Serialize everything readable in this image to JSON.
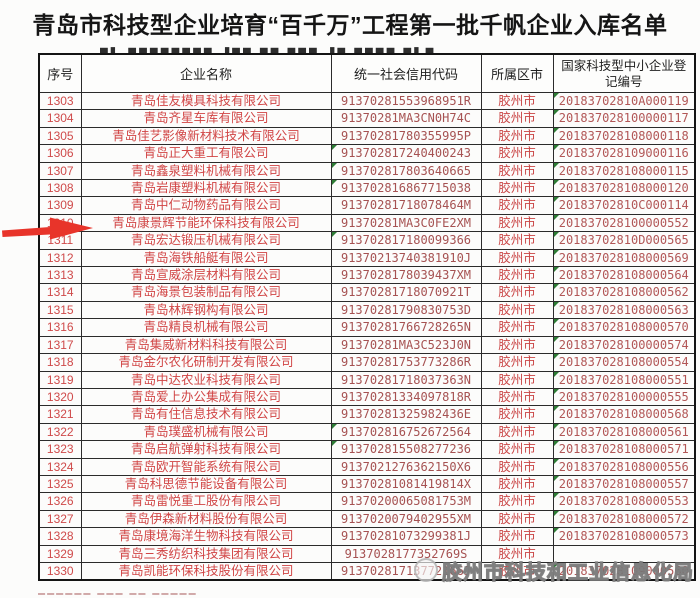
{
  "title": "青岛市科技型企业培育“百千万”工程第一批千帆企业入库名单",
  "artifacts": {
    "clipped_line_top": "▄▖ ▄▄▄▄▄▄▄▄ ▗▄▄ ▄▄ ▄▄▄ ▗▄ ▄▄▄▄ ▄▖▄",
    "clipped_row_bottom": "▀▀▀▀▀▀        ▀▀▀        ▀▀        ▀▀▀▀▀"
  },
  "table": {
    "headers": [
      "序号",
      "企业名称",
      "统一社会信用代码",
      "所属区市",
      "国家科技型中小企业登记编号"
    ],
    "rows": [
      [
        "1303",
        "青岛佳友模具科技有限公司",
        "91370281553968951R",
        "胶州市",
        "20183702810A000119"
      ],
      [
        "1304",
        "青岛齐星车库有限公司",
        "91370281MA3CN0H74C",
        "胶州市",
        "201837028100000117"
      ],
      [
        "1305",
        "青岛佳艺影像新材料技术有限公司",
        "91370281780355995P",
        "胶州市",
        "201837028108000118"
      ],
      [
        "1306",
        "青岛正大重工有限公司",
        "913702817240400243",
        "胶州市",
        "201837028109000116"
      ],
      [
        "1307",
        "青岛鑫泉塑料机械有限公司",
        "913702817803640665",
        "胶州市",
        "201837028108000115"
      ],
      [
        "1308",
        "青岛岩康塑料机械有限公司",
        "913702816867715038",
        "胶州市",
        "201837028108000120"
      ],
      [
        "1309",
        "青岛中仁动物药品有限公司",
        "91370281718078464M",
        "胶州市",
        "20183702810C000114"
      ],
      [
        "1310",
        "青岛康景辉节能环保科技有限公司",
        "91370281MA3C0FE2XM",
        "胶州市",
        "201837028100000552"
      ],
      [
        "1311",
        "青岛宏达锻压机械有限公司",
        "913702817180099366",
        "胶州市",
        "20183702810D000565"
      ],
      [
        "1312",
        "青岛海铁船艇有限公司",
        "91370213740381910J",
        "胶州市",
        "201837028108000569"
      ],
      [
        "1313",
        "青岛宣威涂层材料有限公司",
        "9137028178039437XM",
        "胶州市",
        "201837028108000564"
      ],
      [
        "1314",
        "青岛海景包装制品有限公司",
        "91370281718070921T",
        "胶州市",
        "201837028108000562"
      ],
      [
        "1315",
        "青岛林辉钢构有限公司",
        "91370281790830753D",
        "胶州市",
        "201837028108000563"
      ],
      [
        "1316",
        "青岛精良机械有限公司",
        "91370281766728265N",
        "胶州市",
        "201837028108000570"
      ],
      [
        "1317",
        "青岛集威新材料科技有限公司",
        "91370281MA3C523J0N",
        "胶州市",
        "201837028100000574"
      ],
      [
        "1318",
        "青岛金尔农化研制开发有限公司",
        "91370281753773286R",
        "胶州市",
        "201837028108000554"
      ],
      [
        "1319",
        "青岛中达农业科技有限公司",
        "91370281718037363N",
        "胶州市",
        "201837028108000551"
      ],
      [
        "1320",
        "青岛爱上办公集成有限公司",
        "91370281334097818R",
        "胶州市",
        "201837028100000555"
      ],
      [
        "1321",
        "青岛有住信息技术有限公司",
        "91370281325982436E",
        "胶州市",
        "201837028108000568"
      ],
      [
        "1322",
        "青岛璞盛机械有限公司",
        "913702816752672564",
        "胶州市",
        "201837028108000561"
      ],
      [
        "1323",
        "青岛启航弹射科技有限公司",
        "913702815508277236",
        "胶州市",
        "201837028108000571"
      ],
      [
        "1324",
        "青岛欧开智能系统有限公司",
        "9137021276362150X6",
        "胶州市",
        "201837028108000556"
      ],
      [
        "1325",
        "青岛科思德节能设备有限公司",
        "91370281081419814X",
        "胶州市",
        "201837028108000557"
      ],
      [
        "1326",
        "青岛雷悦重工股份有限公司",
        "91370200065081753M",
        "胶州市",
        "201837028108000553"
      ],
      [
        "1327",
        "青岛伊森新材料股份有限公司",
        "9137020079402955XM",
        "胶州市",
        "201837028108000572"
      ],
      [
        "1328",
        "青岛康境海洋生物科技有限公司",
        "91370281073299381J",
        "胶州市",
        "201837028108000573"
      ],
      [
        "1329",
        "青岛三秀纺织科技集团有限公司",
        "9137028177352769S",
        "胶州市",
        ""
      ],
      [
        "1330",
        "青岛凯能环保科技股份有限公司",
        "91370281713772166J",
        "胶州市",
        "201837028109000560"
      ]
    ]
  },
  "annotations": {
    "arrow_points_to": "青岛康景辉节能环保科技有限公司",
    "arrow_row": "1310",
    "watermark_text": "胶州市科技和工业信息化局"
  },
  "colors": {
    "arrow_red": "#e8342a",
    "serial_text": "#cf4a4a",
    "company_text": "#d14545",
    "credit_code_text": "#a65252",
    "district_text": "#ca4646",
    "registration_text": "#b25757",
    "header_text": "#1f1f1f",
    "grid_line": "#2b2b2b",
    "green_flag": "#2e7d36",
    "watermark_gray": "#8f8f8f"
  }
}
